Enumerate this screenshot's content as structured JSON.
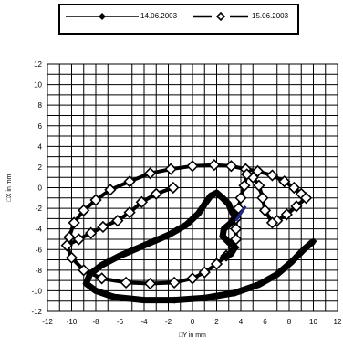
{
  "chart_data": {
    "type": "scatter",
    "title": "",
    "xlabel": "□Y in mm",
    "ylabel": "□X in mm",
    "xlim": [
      -12,
      12
    ],
    "ylim": [
      -12,
      12
    ],
    "x_ticks": [
      "-12",
      "-10",
      "-8",
      "-6",
      "-4",
      "-2",
      "0",
      "2",
      "4",
      "6",
      "8",
      "10",
      "12"
    ],
    "y_ticks": [
      "12",
      "10",
      "8",
      "6",
      "4",
      "2",
      "0",
      "-2",
      "-4",
      "-6",
      "-8",
      "-10",
      "-12"
    ],
    "grid": true,
    "legend_position": "top",
    "series": [
      {
        "name": "14.06.2003",
        "marker": "filled-diamond",
        "color": "#000000",
        "points": [
          [
            10.0,
            -5.2
          ],
          [
            9.2,
            -6.0
          ],
          [
            8.2,
            -7.2
          ],
          [
            7.0,
            -8.4
          ],
          [
            5.5,
            -9.4
          ],
          [
            3.5,
            -10.2
          ],
          [
            1.0,
            -10.7
          ],
          [
            -1.5,
            -10.9
          ],
          [
            -4.0,
            -10.9
          ],
          [
            -6.5,
            -10.6
          ],
          [
            -8.0,
            -10.0
          ],
          [
            -8.8,
            -9.3
          ],
          [
            -8.5,
            -8.4
          ],
          [
            -7.5,
            -7.5
          ],
          [
            -6.0,
            -6.6
          ],
          [
            -4.0,
            -5.6
          ],
          [
            -2.0,
            -4.6
          ],
          [
            -0.5,
            -3.6
          ],
          [
            0.5,
            -2.5
          ],
          [
            1.0,
            -1.6
          ],
          [
            1.5,
            -0.8
          ],
          [
            2.0,
            -0.5
          ],
          [
            2.5,
            -1.0
          ],
          [
            3.0,
            -1.6
          ],
          [
            3.2,
            -2.2
          ],
          [
            3.5,
            -2.8
          ],
          [
            3.2,
            -3.4
          ],
          [
            2.6,
            -4.0
          ],
          [
            2.5,
            -4.7
          ],
          [
            3.0,
            -5.3
          ],
          [
            3.5,
            -5.8
          ],
          [
            3.2,
            -6.4
          ],
          [
            2.5,
            -6.8
          ]
        ]
      },
      {
        "name": "15.06.2003",
        "marker": "open-diamond",
        "color": "#000000",
        "points": [
          [
            -10.2,
            -4.8
          ],
          [
            -9.8,
            -3.4
          ],
          [
            -9.0,
            -2.2
          ],
          [
            -8.0,
            -1.2
          ],
          [
            -6.8,
            -0.2
          ],
          [
            -5.2,
            0.6
          ],
          [
            -3.5,
            1.4
          ],
          [
            -1.8,
            1.8
          ],
          [
            0.0,
            2.1
          ],
          [
            1.8,
            2.2
          ],
          [
            3.2,
            2.1
          ],
          [
            4.4,
            1.8
          ],
          [
            5.4,
            1.6
          ],
          [
            6.6,
            1.2
          ],
          [
            7.6,
            0.6
          ],
          [
            8.4,
            0.0
          ],
          [
            9.0,
            -0.6
          ],
          [
            9.4,
            -1.0
          ],
          [
            8.6,
            -1.8
          ],
          [
            7.8,
            -2.6
          ],
          [
            7.0,
            -3.2
          ],
          [
            6.6,
            -3.4
          ],
          [
            6.0,
            -2.2
          ],
          [
            5.8,
            -1.0
          ],
          [
            5.5,
            0.2
          ],
          [
            5.0,
            1.0
          ],
          [
            4.5,
            1.3
          ],
          [
            4.3,
            0.2
          ],
          [
            4.0,
            -1.0
          ],
          [
            3.8,
            -2.0
          ],
          [
            3.6,
            -3.0
          ],
          [
            3.6,
            -4.0
          ],
          [
            3.6,
            -5.0
          ],
          [
            3.4,
            -5.8
          ],
          [
            2.8,
            -6.6
          ],
          [
            2.0,
            -7.4
          ],
          [
            1.0,
            -8.2
          ],
          [
            0.0,
            -8.8
          ],
          [
            -1.5,
            -9.2
          ],
          [
            -3.5,
            -9.3
          ],
          [
            -5.5,
            -9.2
          ],
          [
            -7.5,
            -8.8
          ],
          [
            -9.0,
            -8.0
          ],
          [
            -10.0,
            -6.8
          ],
          [
            -10.4,
            -5.6
          ],
          [
            -9.4,
            -5.0
          ],
          [
            -8.4,
            -4.4
          ],
          [
            -7.4,
            -3.8
          ],
          [
            -6.2,
            -3.2
          ],
          [
            -5.2,
            -2.4
          ],
          [
            -4.2,
            -1.4
          ],
          [
            -3.0,
            -0.6
          ],
          [
            -1.6,
            0.0
          ]
        ]
      }
    ]
  }
}
